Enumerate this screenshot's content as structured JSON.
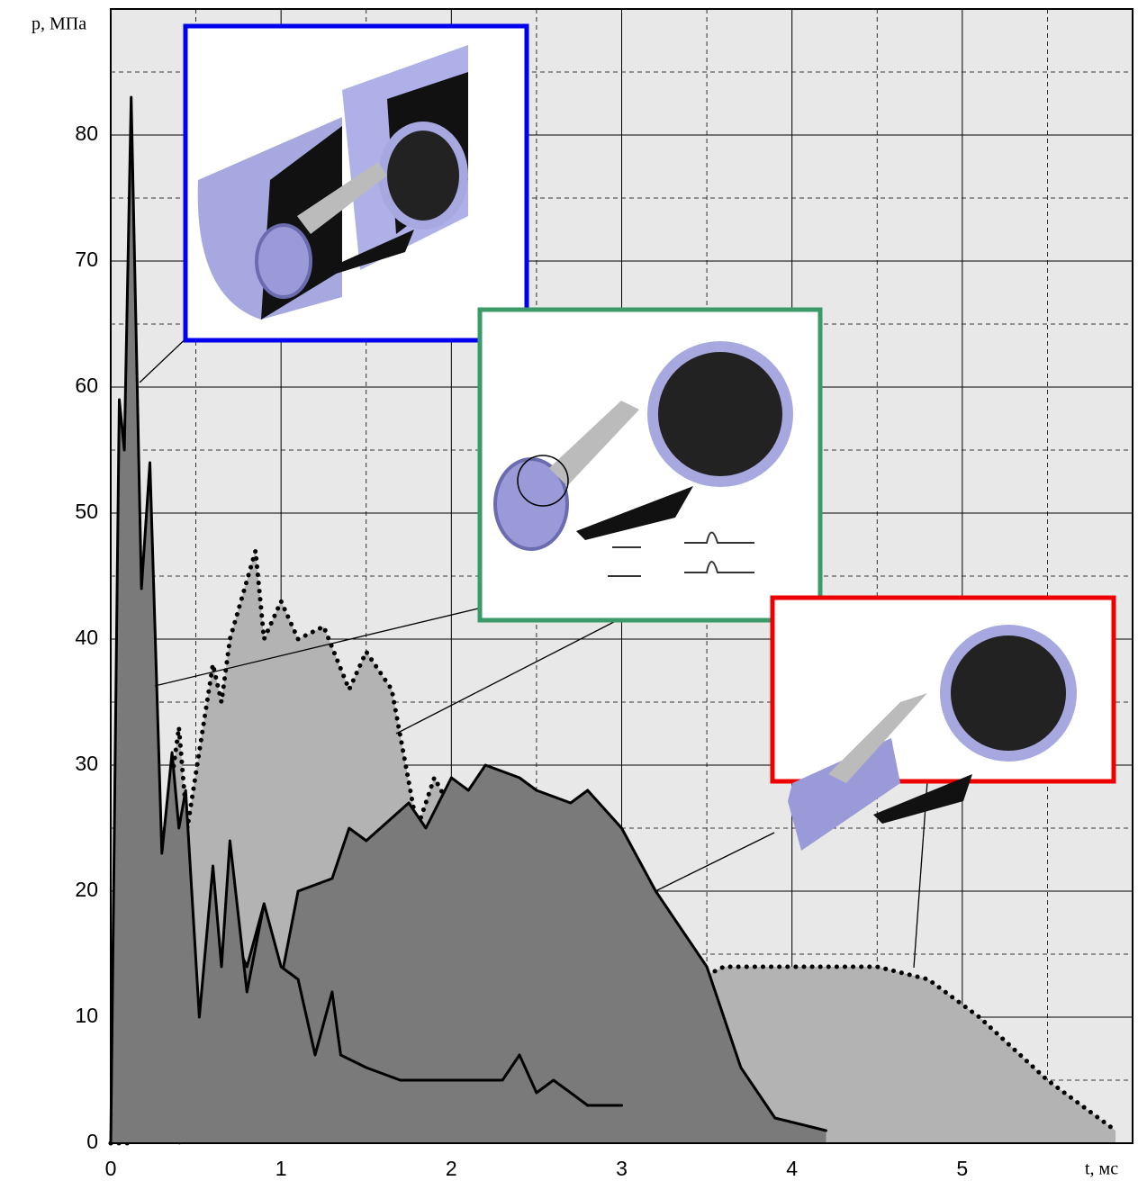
{
  "chart_data": {
    "type": "line",
    "y_label": "p, МПа",
    "x_label": "t, мс",
    "xlim": [
      0,
      6
    ],
    "ylim": [
      0,
      90
    ],
    "xticks": [
      0,
      1,
      2,
      3,
      4,
      5
    ],
    "yticks": [
      0,
      10,
      20,
      30,
      40,
      50,
      60,
      70,
      80
    ],
    "x_minor_grid": [
      0.5,
      1.5,
      2.5,
      3.5,
      4.5,
      5.5
    ],
    "y_minor_grid": [
      5,
      15,
      25,
      35,
      45,
      55,
      65,
      75,
      85
    ],
    "grid": true,
    "background": "#e8e8e8",
    "series": [
      {
        "style": "dotted",
        "fill": "#b3b3b3",
        "color": "#000000",
        "x": [
          0,
          0.1,
          0.25,
          0.4,
          0.55,
          0.7,
          0.85,
          1.0,
          1.1,
          1.3,
          1.4,
          1.7,
          1.9,
          2.1,
          2.5,
          3.0,
          3.3,
          3.6,
          4.0,
          4.5,
          4.8,
          5.1,
          5.5,
          5.8,
          5.9
        ],
        "values": [
          0,
          0,
          2,
          0,
          3,
          2,
          6,
          3,
          2,
          10,
          7,
          9,
          8,
          10,
          11,
          13,
          12,
          14,
          14,
          14,
          13,
          10,
          5,
          2,
          1
        ]
      },
      {
        "style": "dotted",
        "fill": "#b3b3b3",
        "color": "#000000",
        "x": [
          0,
          0.1,
          0.2,
          0.3,
          0.4,
          0.45,
          0.6,
          0.65,
          0.7,
          0.85,
          0.9,
          1.0,
          1.1,
          1.25,
          1.4,
          1.5,
          1.65,
          1.8,
          1.9,
          2.1,
          2.3,
          2.5,
          2.7,
          2.8,
          3.0,
          3.2,
          3.3,
          3.5
        ],
        "values": [
          0,
          11,
          6,
          23,
          33,
          25,
          38,
          35,
          40,
          47,
          40,
          43,
          40,
          41,
          36,
          39,
          36,
          25,
          29,
          24,
          18,
          15,
          13,
          8,
          8,
          5,
          6,
          4.5
        ]
      },
      {
        "style": "solid",
        "fill": "#7a7a7a",
        "color": "#000000",
        "x": [
          0,
          0.1,
          0.15,
          0.25,
          0.35,
          0.45,
          0.55,
          0.7,
          0.8,
          0.9,
          1.0,
          1.1,
          1.3,
          1.4,
          1.5,
          1.75,
          1.85,
          2.0,
          2.1,
          2.2,
          2.4,
          2.5,
          2.7,
          2.8,
          3.0,
          3.2,
          3.5,
          3.7,
          3.9,
          4.2
        ],
        "values": [
          0,
          3,
          1,
          8,
          5,
          10,
          5,
          17,
          14,
          19,
          13,
          20,
          21,
          25,
          24,
          27,
          25,
          29,
          28,
          30,
          29,
          28,
          27,
          28,
          25,
          20,
          14,
          6,
          2,
          1
        ]
      },
      {
        "style": "solid",
        "fill": "#7a7a7a",
        "color": "#000000",
        "x": [
          0,
          0.05,
          0.08,
          0.12,
          0.18,
          0.23,
          0.3,
          0.36,
          0.4,
          0.44,
          0.52,
          0.6,
          0.65,
          0.7,
          0.8,
          0.9,
          1.0,
          1.1,
          1.2,
          1.3,
          1.35,
          1.5,
          1.7,
          2.0,
          2.3,
          2.4,
          2.5,
          2.6,
          2.8,
          3.0
        ],
        "values": [
          0,
          59,
          55,
          83,
          44,
          54,
          23,
          31,
          25,
          28,
          10,
          22,
          14,
          24,
          12,
          19,
          14,
          13,
          7,
          12,
          7,
          6,
          5,
          5,
          5,
          7,
          4,
          5,
          3,
          3
        ]
      }
    ]
  }
}
